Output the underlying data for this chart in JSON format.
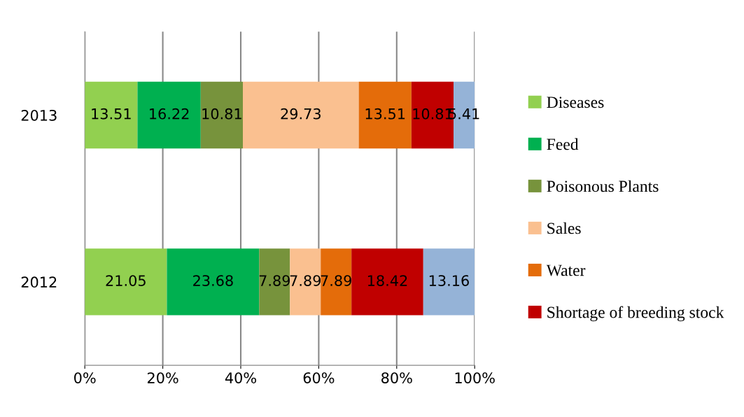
{
  "chart_data": {
    "type": "bar",
    "orientation": "horizontal",
    "stacked": true,
    "categories": [
      "2013",
      "2012"
    ],
    "series": [
      {
        "name": "Diseases",
        "color": "#92d050",
        "values": [
          13.51,
          21.05
        ]
      },
      {
        "name": "Feed",
        "color": "#00b050",
        "values": [
          16.22,
          23.68
        ]
      },
      {
        "name": "Poisonous Plants",
        "color": "#77933c",
        "values": [
          10.81,
          7.89
        ]
      },
      {
        "name": "Sales",
        "color": "#fac090",
        "values": [
          29.73,
          7.89
        ]
      },
      {
        "name": "Water",
        "color": "#e46c0a",
        "values": [
          13.51,
          7.89
        ]
      },
      {
        "name": "Shortage of breeding stock",
        "color": "#c00000",
        "values": [
          10.81,
          18.42
        ]
      },
      {
        "color": "#95b3d7",
        "values": [
          5.41,
          13.16
        ]
      }
    ],
    "xlim": [
      0,
      100
    ],
    "xticks": [
      {
        "value": 0,
        "label": "0%"
      },
      {
        "value": 20,
        "label": "20%"
      },
      {
        "value": 40,
        "label": "40%"
      },
      {
        "value": 60,
        "label": "60%"
      },
      {
        "value": 80,
        "label": "80%"
      },
      {
        "value": 100,
        "label": "100%"
      }
    ],
    "grid": "x",
    "legend": "right",
    "data_labels": true
  }
}
